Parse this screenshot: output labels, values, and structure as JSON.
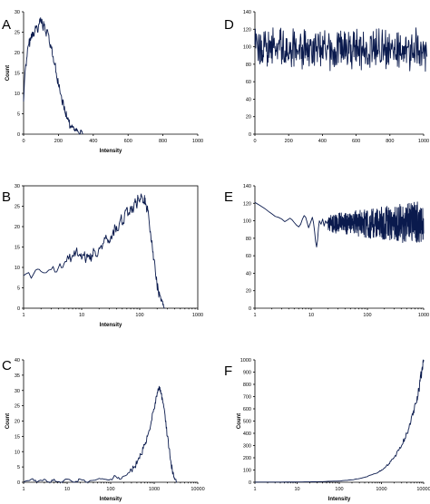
{
  "chart_data": [
    {
      "panel": "A",
      "type": "line",
      "xlabel": "Intensity",
      "ylabel": "Count",
      "xscale": "linear",
      "xlim": [
        0,
        1000
      ],
      "ylim": [
        0,
        30
      ],
      "xticks": [
        0,
        200,
        400,
        600,
        800,
        1000
      ],
      "yticks": [
        0,
        5,
        10,
        15,
        20,
        25,
        30
      ],
      "boxed": false,
      "series": [
        {
          "x": [
            0,
            10,
            20,
            30,
            40,
            50,
            60,
            70,
            80,
            90,
            100,
            110,
            120,
            130,
            140,
            150,
            160,
            170,
            180,
            190,
            200,
            210,
            220,
            230,
            240,
            250,
            260,
            270,
            280,
            290,
            300,
            310,
            320,
            330,
            340
          ],
          "y": [
            8,
            16,
            19,
            22,
            23,
            25,
            24,
            26,
            25,
            27,
            28,
            26,
            27,
            24,
            25,
            22,
            21,
            19,
            17,
            14,
            12,
            10,
            8,
            7,
            5,
            4,
            3,
            2,
            2,
            1,
            1,
            1,
            0,
            1,
            0
          ]
        }
      ]
    },
    {
      "panel": "B",
      "type": "line",
      "xlabel": "Intensity",
      "ylabel": "",
      "xscale": "log",
      "xlim": [
        1,
        1000
      ],
      "ylim": [
        0,
        30
      ],
      "xticks": [
        1,
        10,
        100,
        1000
      ],
      "yticks": [
        0,
        5,
        10,
        15,
        20,
        25,
        30
      ],
      "boxed": true,
      "series": [
        {
          "x": [
            1,
            1.5,
            2,
            3,
            4,
            5,
            6,
            7,
            8,
            9,
            10,
            11,
            12,
            13,
            14,
            15,
            17,
            19,
            21,
            24,
            27,
            30,
            34,
            38,
            42,
            47,
            52,
            58,
            64,
            70,
            76,
            82,
            88,
            94,
            100,
            106,
            112,
            118,
            124,
            130,
            138,
            146,
            155,
            165,
            175,
            186,
            198,
            210,
            225,
            240,
            255,
            270
          ],
          "y": [
            8,
            8.5,
            9,
            9.5,
            10,
            11,
            12,
            13,
            14,
            13,
            12,
            13,
            12,
            13,
            12,
            13,
            14,
            13,
            15,
            16,
            17,
            16,
            18,
            20,
            19,
            22,
            21,
            24,
            23,
            25,
            24,
            26,
            25,
            27,
            26,
            28,
            27,
            26,
            27,
            25,
            24,
            21,
            18,
            15,
            12,
            9,
            6,
            4,
            3,
            2,
            1,
            0
          ]
        }
      ]
    },
    {
      "panel": "C",
      "type": "line",
      "xlabel": "Intensity",
      "ylabel": "Count",
      "xscale": "log",
      "xlim": [
        1,
        10000
      ],
      "ylim": [
        0,
        40
      ],
      "xticks": [
        1,
        10,
        100,
        1000,
        10000
      ],
      "yticks": [
        0,
        5,
        10,
        15,
        20,
        25,
        30,
        35,
        40
      ],
      "boxed": false,
      "series": [
        {
          "x": [
            1,
            1.5,
            2,
            3,
            4,
            5,
            7,
            10,
            15,
            20,
            30,
            50,
            70,
            100,
            130,
            160,
            200,
            250,
            300,
            350,
            400,
            450,
            500,
            560,
            630,
            700,
            780,
            860,
            950,
            1050,
            1150,
            1250,
            1350,
            1450,
            1550,
            1700,
            1850,
            2000,
            2200,
            2400,
            2600,
            2800,
            3000,
            3300
          ],
          "y": [
            0,
            1,
            0,
            1,
            0,
            1,
            0,
            1,
            0,
            1,
            0,
            1,
            1,
            1,
            2,
            1,
            2,
            3,
            4,
            5,
            6,
            8,
            9,
            11,
            13,
            15,
            17,
            20,
            23,
            26,
            28,
            30,
            31,
            29,
            27,
            24,
            20,
            15,
            11,
            7,
            4,
            2,
            1,
            0
          ]
        }
      ]
    },
    {
      "panel": "D",
      "type": "line",
      "xlabel": "",
      "ylabel": "",
      "xscale": "linear",
      "xlim": [
        0,
        1000
      ],
      "ylim": [
        0,
        140
      ],
      "xticks": [
        0,
        200,
        400,
        600,
        800,
        1000
      ],
      "yticks": [
        0,
        20,
        40,
        60,
        80,
        100,
        120,
        140
      ],
      "boxed": false,
      "series": [
        {
          "noise": true,
          "mean": 98,
          "amplitude": 18,
          "x_range": [
            0,
            1020
          ],
          "points": 420
        }
      ]
    },
    {
      "panel": "E",
      "type": "line",
      "xlabel": "",
      "ylabel": "",
      "xscale": "log",
      "xlim": [
        1,
        1000
      ],
      "ylim": [
        0,
        140
      ],
      "xticks": [
        1,
        10,
        100,
        1000
      ],
      "yticks": [
        0,
        20,
        40,
        60,
        80,
        100,
        120,
        140
      ],
      "boxed": false,
      "series": [
        {
          "x": [
            1,
            1.2,
            1.5,
            1.8,
            2,
            2.3,
            2.6,
            3,
            3.4,
            3.8,
            4.2,
            4.6,
            5,
            5.5,
            6,
            6.5,
            7,
            7.5,
            8,
            8.5,
            9,
            9.5,
            10,
            10.5,
            11,
            11.5,
            12,
            12.5,
            13,
            13.5,
            14,
            15,
            16,
            17,
            18,
            19,
            20
          ],
          "y": [
            121,
            118,
            114,
            110,
            108,
            105,
            104,
            102,
            99,
            101,
            103,
            101,
            98,
            95,
            93,
            96,
            102,
            106,
            104,
            98,
            92,
            96,
            100,
            104,
            98,
            88,
            76,
            70,
            78,
            92,
            100,
            96,
            102,
            94,
            100,
            97,
            100
          ],
          "noise_tail": {
            "x_range": [
              20,
              1000
            ],
            "mean": 97,
            "amplitude_start": 10,
            "amplitude_end": 26,
            "points": 520
          }
        }
      ]
    },
    {
      "panel": "F",
      "type": "line",
      "xlabel": "Intensity",
      "ylabel": "Count",
      "xscale": "log",
      "xlim": [
        1,
        10000
      ],
      "ylim": [
        0,
        1000
      ],
      "xticks": [
        1,
        10,
        100,
        1000,
        10000
      ],
      "yticks": [
        0,
        100,
        200,
        300,
        400,
        500,
        600,
        700,
        800,
        900,
        1000
      ],
      "boxed": false,
      "series": [
        {
          "x": [
            1,
            10,
            30,
            100,
            200,
            400,
            700,
            1000,
            1500,
            2000,
            3000,
            4000,
            5000,
            6000,
            7000,
            8000,
            9000,
            10000
          ],
          "y": [
            1,
            2,
            4,
            10,
            20,
            40,
            70,
            100,
            150,
            200,
            300,
            400,
            500,
            600,
            700,
            800,
            900,
            1000
          ]
        }
      ]
    }
  ]
}
